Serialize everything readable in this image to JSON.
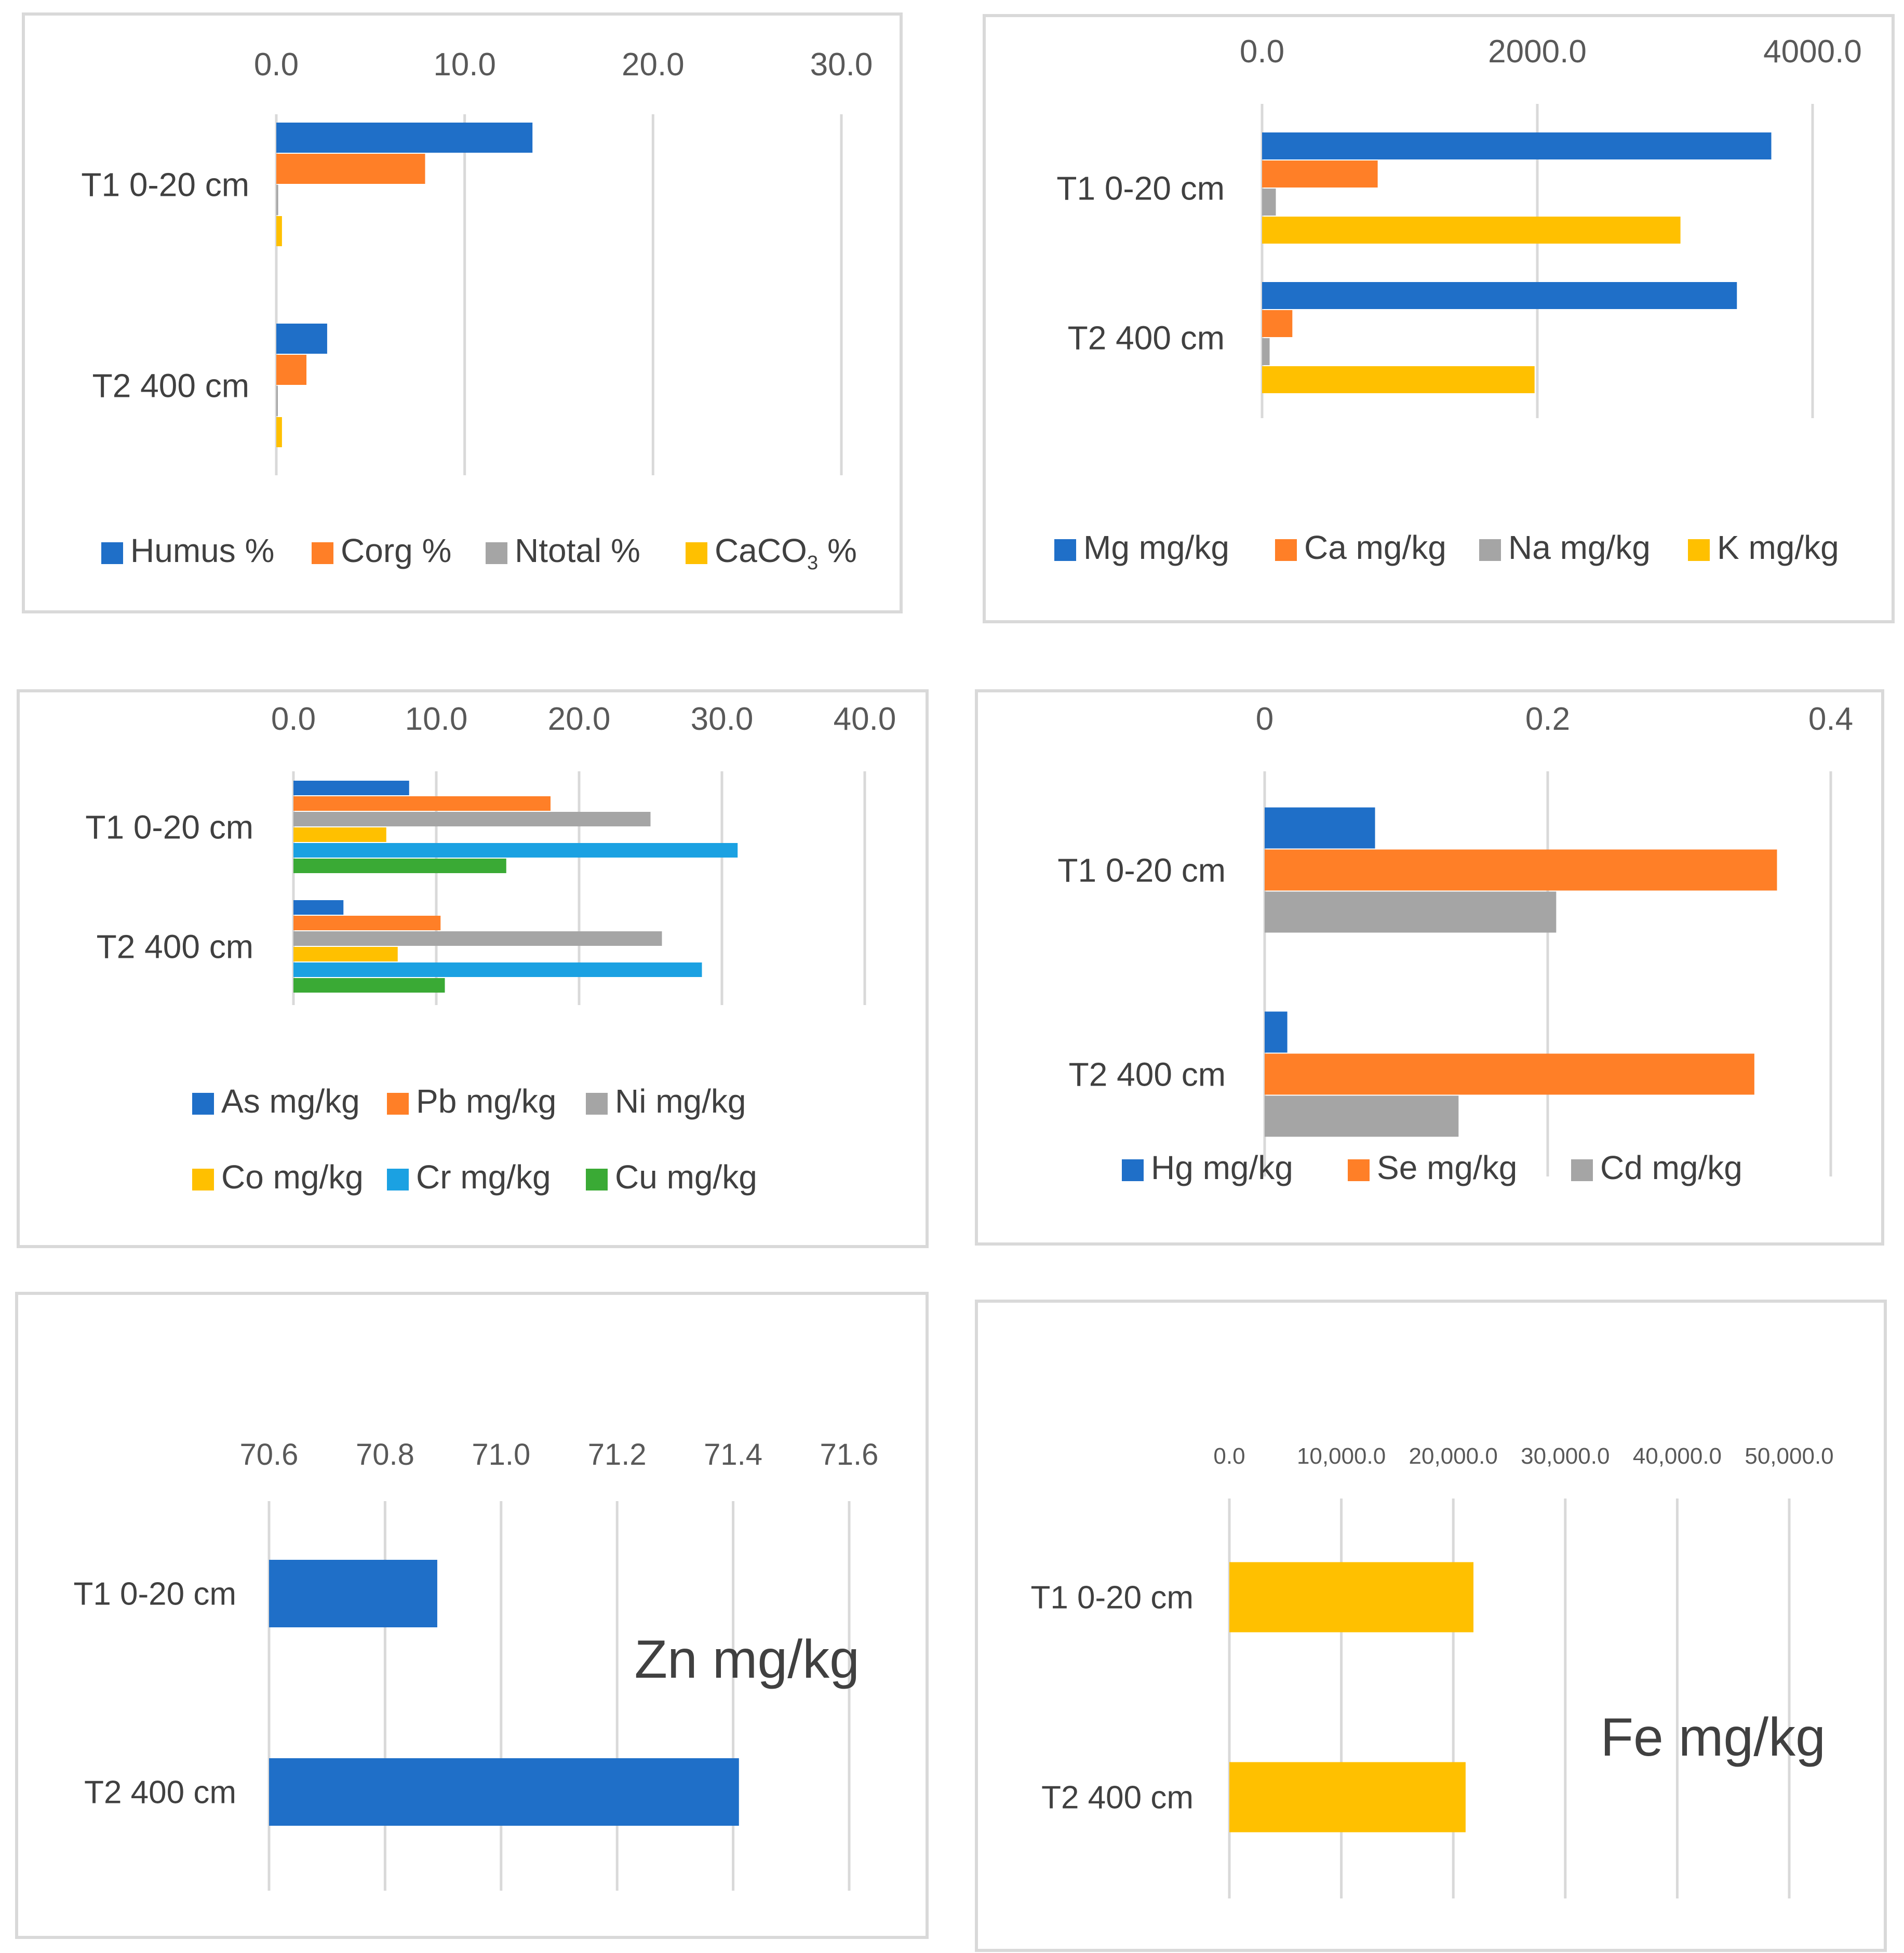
{
  "chart_data": [
    {
      "type": "bar",
      "orientation": "horizontal",
      "categories": [
        "T1 0-20 cm",
        "T2 400 cm"
      ],
      "xlim": [
        0,
        30
      ],
      "ticks": [
        "0.0",
        "10.0",
        "20.0",
        "30.0"
      ],
      "tick_values": [
        0,
        10,
        20,
        30
      ],
      "grid": true,
      "legend_position": "bottom",
      "series": [
        {
          "name": "Humus %",
          "color": "#1f6fc8",
          "values": [
            13.6,
            2.7
          ]
        },
        {
          "name": "Corg %",
          "color": "#ff7f27",
          "values": [
            7.9,
            1.6
          ]
        },
        {
          "name": "Ntotal %",
          "color": "#a5a5a5",
          "values": [
            0.1,
            0.05
          ]
        },
        {
          "name": "CaCO3 %",
          "color": "#ffc000",
          "values": [
            0.3,
            0.3
          ]
        }
      ]
    },
    {
      "type": "bar",
      "orientation": "horizontal",
      "categories": [
        "T1 0-20 cm",
        "T2 400 cm"
      ],
      "xlim": [
        0,
        4000
      ],
      "ticks": [
        "0.0",
        "2000.0",
        "4000.0"
      ],
      "tick_values": [
        0,
        2000,
        4000
      ],
      "grid": true,
      "legend_position": "bottom",
      "series": [
        {
          "name": "Mg mg/kg",
          "color": "#1f6fc8",
          "values": [
            3700,
            3450
          ]
        },
        {
          "name": "Ca mg/kg",
          "color": "#ff7f27",
          "values": [
            840,
            220
          ]
        },
        {
          "name": "Na mg/kg",
          "color": "#a5a5a5",
          "values": [
            100,
            55
          ]
        },
        {
          "name": "K mg/kg",
          "color": "#ffc000",
          "values": [
            3040,
            1980
          ]
        }
      ]
    },
    {
      "type": "bar",
      "orientation": "horizontal",
      "categories": [
        "T1 0-20 cm",
        "T2 400 cm"
      ],
      "xlim": [
        0,
        40
      ],
      "ticks": [
        "0.0",
        "10.0",
        "20.0",
        "30.0",
        "40.0"
      ],
      "tick_values": [
        0,
        10,
        20,
        30,
        40
      ],
      "grid": true,
      "legend_position": "bottom",
      "series": [
        {
          "name": "As mg/kg",
          "color": "#1f6fc8",
          "values": [
            8.1,
            3.5
          ]
        },
        {
          "name": "Pb mg/kg",
          "color": "#ff7f27",
          "values": [
            18.0,
            10.3
          ]
        },
        {
          "name": "Ni mg/kg",
          "color": "#a5a5a5",
          "values": [
            25.0,
            25.8
          ]
        },
        {
          "name": "Co mg/kg",
          "color": "#ffc000",
          "values": [
            6.5,
            7.3
          ]
        },
        {
          "name": "Cr mg/kg",
          "color": "#1ba1e2",
          "values": [
            31.1,
            28.6
          ]
        },
        {
          "name": "Cu mg/kg",
          "color": "#3aaa35",
          "values": [
            14.9,
            10.6
          ]
        }
      ]
    },
    {
      "type": "bar",
      "orientation": "horizontal",
      "categories": [
        "T1 0-20 cm",
        "T2 400 cm"
      ],
      "xlim": [
        0,
        0.4
      ],
      "ticks": [
        "0",
        "0.2",
        "0.4"
      ],
      "tick_values": [
        0,
        0.2,
        0.4
      ],
      "grid": true,
      "legend_position": "bottom",
      "series": [
        {
          "name": "Hg mg/kg",
          "color": "#1f6fc8",
          "values": [
            0.078,
            0.016
          ]
        },
        {
          "name": "Se mg/kg",
          "color": "#ff7f27",
          "values": [
            0.362,
            0.346
          ]
        },
        {
          "name": "Cd mg/kg",
          "color": "#a5a5a5",
          "values": [
            0.206,
            0.137
          ]
        }
      ]
    },
    {
      "type": "bar",
      "orientation": "horizontal",
      "title": "Zn mg/kg",
      "categories": [
        "T1 0-20 cm",
        "T2 400 cm"
      ],
      "xlim": [
        70.6,
        71.6
      ],
      "ticks": [
        "70.6",
        "70.8",
        "71.0",
        "71.2",
        "71.4",
        "71.6"
      ],
      "tick_values": [
        70.6,
        70.8,
        71.0,
        71.2,
        71.4,
        71.6
      ],
      "grid": true,
      "series": [
        {
          "color": "#1f6fc8",
          "values": [
            70.89,
            71.41
          ]
        }
      ]
    },
    {
      "type": "bar",
      "orientation": "horizontal",
      "title": "Fe mg/kg",
      "categories": [
        "T1 0-20 cm",
        "T2 400 cm"
      ],
      "xlim": [
        0,
        50000
      ],
      "ticks": [
        "0.0",
        "10,000.0",
        "20,000.0",
        "30,000.0",
        "40,000.0",
        "50,000.0"
      ],
      "tick_values": [
        0,
        10000,
        20000,
        30000,
        40000,
        50000
      ],
      "grid": true,
      "series": [
        {
          "color": "#ffc000",
          "values": [
            21800,
            21100
          ]
        }
      ]
    }
  ]
}
